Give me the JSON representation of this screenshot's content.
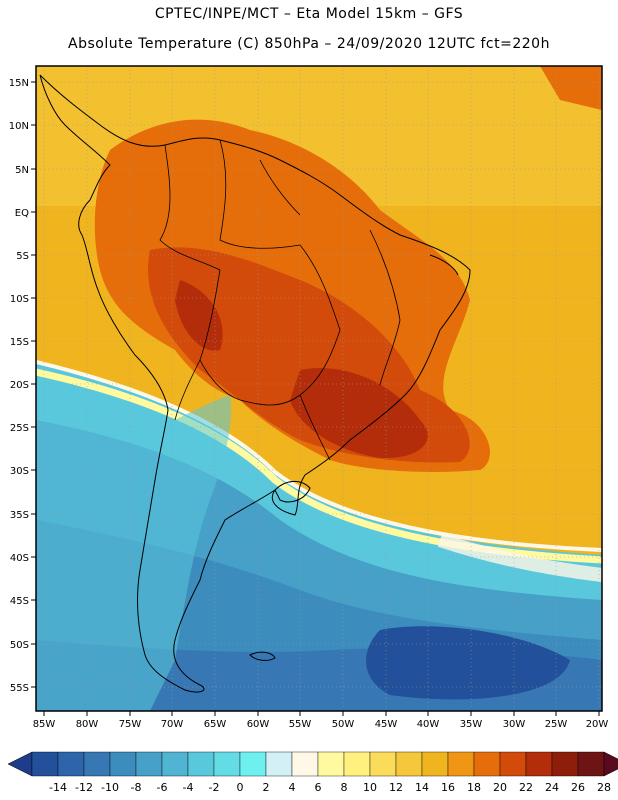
{
  "header": {
    "line1": "CPTEC/INPE/MCT –  Eta Model 15km – GFS",
    "line2": "Absolute Temperature (C) 850hPa – 24/09/2020 12UTC fct=220h"
  },
  "map": {
    "lat_labels": [
      "15N",
      "10N",
      "5N",
      "EQ",
      "5S",
      "10S",
      "15S",
      "20S",
      "25S",
      "30S",
      "35S",
      "40S",
      "45S",
      "50S",
      "55S"
    ],
    "lon_labels": [
      "85W",
      "80W",
      "75W",
      "70W",
      "65W",
      "60W",
      "55W",
      "50W",
      "45W",
      "40W",
      "35W",
      "30W",
      "25W",
      "20W"
    ],
    "land_outline": "continent-and-country-borders",
    "grid": "dotted"
  },
  "colorbar": {
    "labels": [
      "-14",
      "-12",
      "-10",
      "-8",
      "-6",
      "-4",
      "-2",
      "0",
      "2",
      "4",
      "6",
      "8",
      "10",
      "12",
      "14",
      "16",
      "18",
      "20",
      "22",
      "24",
      "26",
      "28"
    ],
    "colors": [
      "#1e3c8c",
      "#23509b",
      "#2d64aa",
      "#3778b4",
      "#3c8cbe",
      "#46a0c8",
      "#50b4d2",
      "#5ac8dc",
      "#64dce6",
      "#6ef0f0",
      "#d2f0f5",
      "#fff8e6",
      "#fffaa0",
      "#fff080",
      "#fadc5a",
      "#f5c83c",
      "#f0b41e",
      "#f09614",
      "#e66e0a",
      "#d24b0a",
      "#b42d0a",
      "#8c1e0a",
      "#6e1414",
      "#5a0a1e"
    ]
  }
}
